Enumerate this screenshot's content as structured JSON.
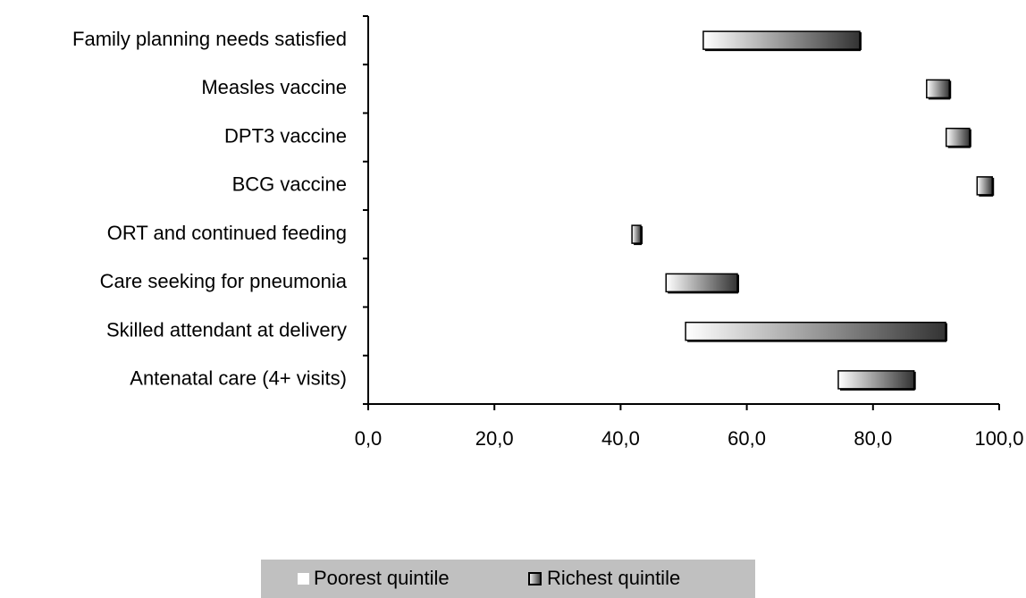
{
  "chart_data": {
    "type": "range-bar",
    "categories": [
      "Family planning needs satisfied",
      "Measles vaccine",
      "DPT3 vaccine",
      "BCG vaccine",
      "ORT and continued feeding",
      "Care seeking for pneumonia",
      "Skilled attendant at delivery",
      "Antenatal care (4+ visits)"
    ],
    "series": [
      {
        "name": "Poorest quintile",
        "color": "#ffffff",
        "values": [
          53.1,
          88.5,
          91.6,
          96.5,
          41.8,
          47.2,
          50.3,
          74.5
        ]
      },
      {
        "name": "Richest quintile",
        "color": "#333333",
        "values": [
          77.9,
          92.1,
          95.3,
          98.9,
          43.2,
          58.5,
          91.5,
          86.5
        ]
      }
    ],
    "xlim": [
      0,
      100
    ],
    "xticks": [
      {
        "value": 0,
        "label": "0,0"
      },
      {
        "value": 20,
        "label": "20,0"
      },
      {
        "value": 40,
        "label": "40,0"
      },
      {
        "value": 60,
        "label": "60,0"
      },
      {
        "value": 80,
        "label": "80,0"
      },
      {
        "value": 100,
        "label": "100,0"
      }
    ],
    "legend": "bottom"
  }
}
